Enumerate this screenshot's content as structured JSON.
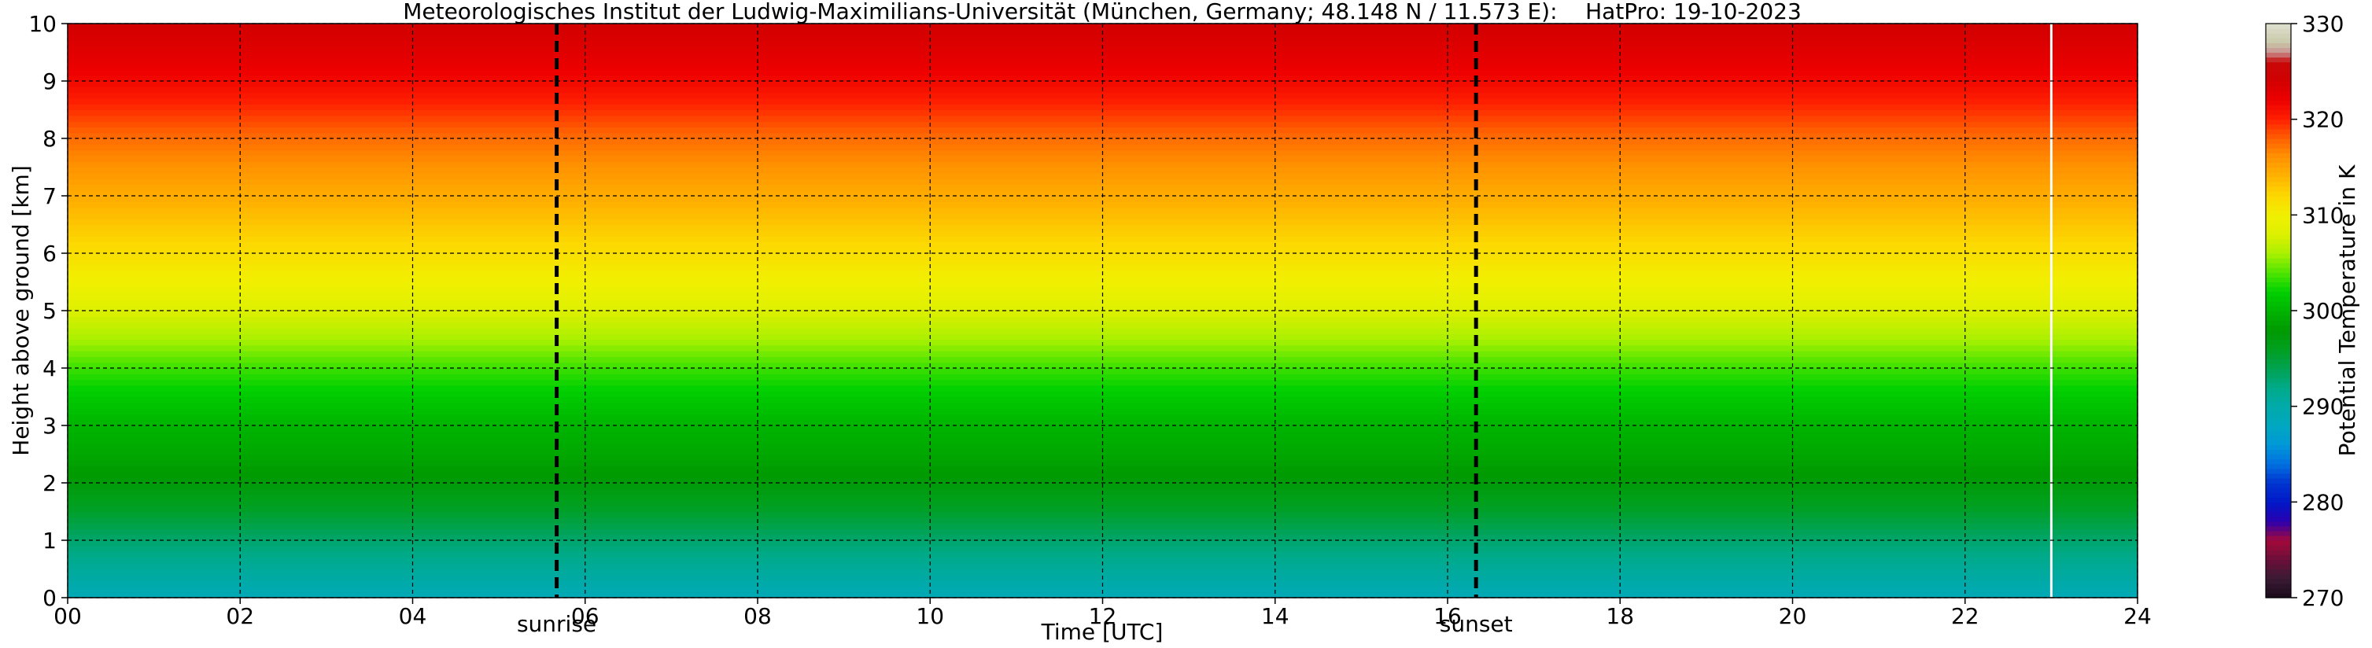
{
  "chart_data": {
    "type": "heatmap",
    "title": "Meteorologisches Institut der Ludwig-Maximilians-Universität (München, Germany; 48.148 N / 11.573 E):    HatPro: 19-10-2023",
    "xlabel": "Time [UTC]",
    "ylabel": "Height above ground [km]",
    "colorbar_label": "Potential Temperature in K",
    "xlim": [
      0,
      24
    ],
    "ylim": [
      0,
      10
    ],
    "xticks": [
      "00",
      "02",
      "04",
      "06",
      "08",
      "10",
      "12",
      "14",
      "16",
      "18",
      "20",
      "22",
      "24"
    ],
    "yticks": [
      "0",
      "1",
      "2",
      "3",
      "4",
      "5",
      "6",
      "7",
      "8",
      "9",
      "10"
    ],
    "colorbar_ticks": [
      "270",
      "280",
      "290",
      "300",
      "310",
      "320",
      "330"
    ],
    "colorbar_range": [
      270,
      330
    ],
    "grid": true,
    "sunrise": {
      "label": "sunrise",
      "time": 5.67
    },
    "sunset": {
      "label": "sunset",
      "time": 16.33
    },
    "profile_levels_km": [
      0,
      0.25,
      0.5,
      1,
      1.5,
      2,
      2.5,
      3,
      3.5,
      4,
      4.5,
      5,
      5.5,
      6,
      6.5,
      7,
      7.5,
      8,
      8.5,
      9,
      9.5,
      10
    ],
    "profile_theta_K": [
      289,
      290,
      291,
      293,
      295.5,
      297.5,
      299,
      300,
      301.5,
      303.5,
      306,
      308,
      310,
      311.5,
      313,
      314.5,
      316,
      317.5,
      319.5,
      321.5,
      323,
      324
    ],
    "data_gap_after_time": 23.0,
    "colormap": [
      {
        "k": 270,
        "c": "#1a0a1a"
      },
      {
        "k": 272,
        "c": "#3a1a33"
      },
      {
        "k": 274,
        "c": "#6b0f3a"
      },
      {
        "k": 276,
        "c": "#a4093a"
      },
      {
        "k": 278,
        "c": "#2a00b0"
      },
      {
        "k": 280,
        "c": "#0018c8"
      },
      {
        "k": 282,
        "c": "#0034d0"
      },
      {
        "k": 284,
        "c": "#0070e0"
      },
      {
        "k": 286,
        "c": "#0098d8"
      },
      {
        "k": 288,
        "c": "#00a8c0"
      },
      {
        "k": 290,
        "c": "#00aaaa"
      },
      {
        "k": 292,
        "c": "#00aa88"
      },
      {
        "k": 294,
        "c": "#00a250"
      },
      {
        "k": 296,
        "c": "#00a020"
      },
      {
        "k": 298,
        "c": "#009a00"
      },
      {
        "k": 300,
        "c": "#00b400"
      },
      {
        "k": 302,
        "c": "#00d000"
      },
      {
        "k": 304,
        "c": "#50e400"
      },
      {
        "k": 306,
        "c": "#aaf000"
      },
      {
        "k": 308,
        "c": "#ddf000"
      },
      {
        "k": 310,
        "c": "#f0f000"
      },
      {
        "k": 312,
        "c": "#fcd800"
      },
      {
        "k": 314,
        "c": "#ffb400"
      },
      {
        "k": 316,
        "c": "#ff9400"
      },
      {
        "k": 318,
        "c": "#ff6000"
      },
      {
        "k": 320,
        "c": "#ff2000"
      },
      {
        "k": 322,
        "c": "#ee0000"
      },
      {
        "k": 324,
        "c": "#d20000"
      },
      {
        "k": 326,
        "c": "#c80808"
      },
      {
        "k": 327,
        "c": "#c89090"
      },
      {
        "k": 328,
        "c": "#c8c8a8"
      },
      {
        "k": 330,
        "c": "#e0e0d0"
      }
    ]
  }
}
